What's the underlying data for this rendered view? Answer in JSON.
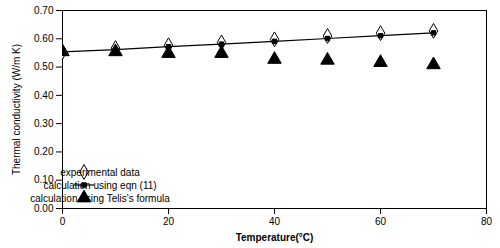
{
  "chart_data": {
    "type": "line",
    "x": [
      0,
      10,
      20,
      30,
      40,
      50,
      60,
      70
    ],
    "series": [
      {
        "name": "experimental data",
        "type": "scatter",
        "marker": "diamond-open",
        "color": "#000000",
        "values": [
          0.554,
          0.567,
          0.577,
          0.587,
          0.598,
          0.61,
          0.62,
          0.628
        ]
      },
      {
        "name": "calculation using eqn (11)",
        "type": "line",
        "marker": "square",
        "color": "#000000",
        "values": [
          0.554,
          0.562,
          0.572,
          0.581,
          0.591,
          0.601,
          0.611,
          0.621
        ]
      },
      {
        "name": "calculation using Telis's formula",
        "type": "scatter",
        "marker": "triangle",
        "color": "#000000",
        "values": [
          0.554,
          0.554,
          0.548,
          0.548,
          0.527,
          0.524,
          0.516,
          0.508
        ]
      }
    ],
    "xlabel": "Temperature(°C)",
    "ylabel": "Thermal conductivity (W/m K)",
    "xlim": [
      0,
      80
    ],
    "ylim": [
      0,
      0.7
    ],
    "xticks": [
      0,
      20,
      40,
      60,
      80
    ],
    "yticks": [
      {
        "value": 0,
        "label": "0.00"
      },
      {
        "value": 0.1,
        "label": "0.10"
      },
      {
        "value": 0.2,
        "label": "0.20"
      },
      {
        "value": 0.3,
        "label": "0.30"
      },
      {
        "value": 0.4,
        "label": "0.40"
      },
      {
        "value": 0.5,
        "label": "0.50"
      },
      {
        "value": 0.6,
        "label": "0.60"
      },
      {
        "value": 0.7,
        "label": "0.70"
      }
    ],
    "grid": false,
    "legend": "lower left"
  }
}
